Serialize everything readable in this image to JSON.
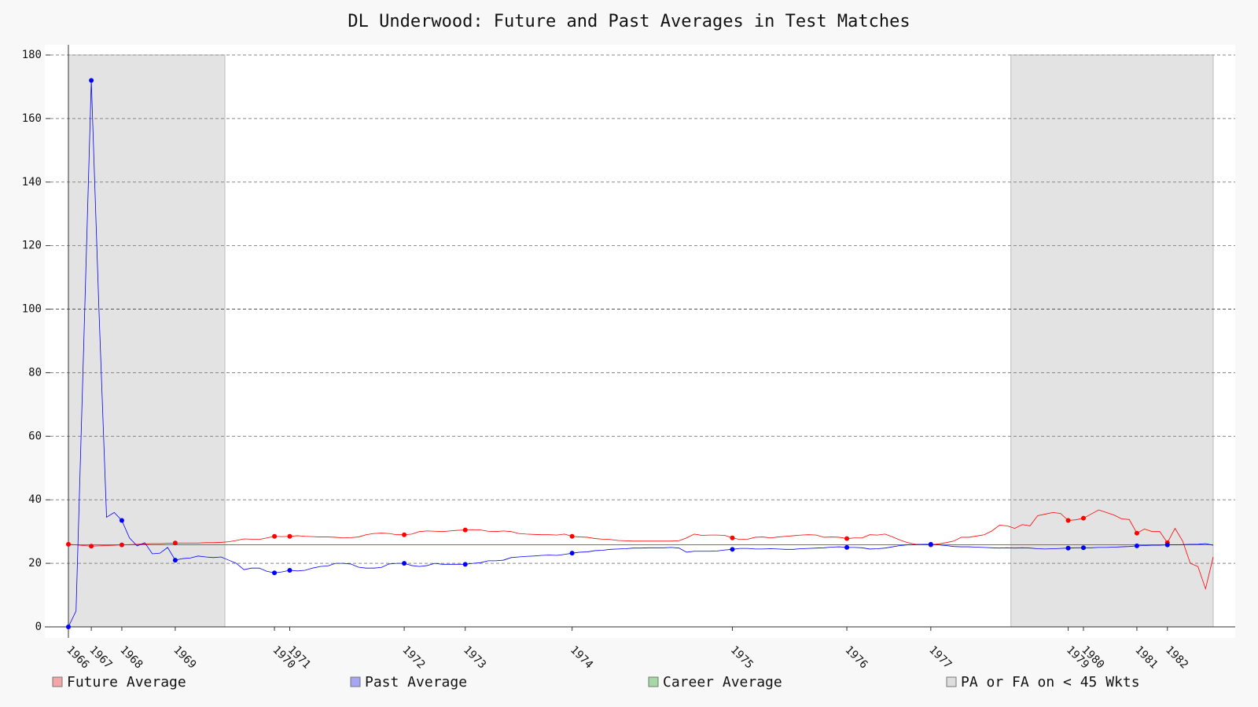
{
  "chart_data": {
    "type": "line",
    "title": "DL Underwood: Future and Past Averages in Test Matches",
    "x": [
      0,
      1,
      2,
      3,
      4,
      5,
      6,
      7,
      8,
      9,
      10,
      11,
      12,
      13,
      14,
      15,
      16,
      17,
      18,
      19,
      20,
      21,
      22,
      23,
      24,
      25,
      26,
      27,
      28,
      29,
      30,
      31,
      32,
      33,
      34,
      35,
      36,
      37,
      38,
      39,
      40,
      41,
      42,
      43,
      44,
      45,
      46,
      47,
      48,
      49,
      50,
      51,
      52,
      53,
      54,
      55,
      56,
      57,
      58,
      59,
      60,
      61,
      62,
      63,
      64,
      65,
      66,
      67,
      68,
      69,
      70,
      71,
      72,
      73,
      74,
      75,
      76,
      77,
      78,
      79,
      80,
      81,
      82,
      83,
      84,
      85,
      86,
      87,
      88,
      89,
      90,
      91,
      92,
      93,
      94,
      95,
      96,
      97,
      98,
      99,
      100,
      101,
      102,
      103,
      104,
      105,
      106,
      107,
      108,
      109,
      110,
      111,
      112,
      113,
      114,
      115,
      116,
      117,
      118,
      119,
      120,
      121,
      122,
      123,
      124,
      125,
      126,
      127,
      128,
      129,
      130,
      131,
      132,
      133,
      134,
      135,
      136,
      137,
      138,
      139,
      140,
      141,
      142,
      143,
      144,
      145,
      146,
      147,
      148,
      149,
      150
    ],
    "series": [
      {
        "name": "Future Average",
        "color": "#ff0000",
        "legend_color": "#f4a6a6",
        "values": [
          26,
          25.8,
          25.6,
          25.4,
          25.5,
          25.6,
          25.7,
          25.8,
          25.9,
          26,
          26.1,
          26.2,
          26.2,
          26.3,
          26.4,
          26.4,
          26.4,
          26.4,
          26.5,
          26.5,
          26.6,
          26.8,
          27.2,
          27.7,
          27.6,
          27.5,
          28,
          28.5,
          28.4,
          28.5,
          28.7,
          28.5,
          28.4,
          28.3,
          28.3,
          28.2,
          28,
          28.1,
          28.3,
          29,
          29.4,
          29.5,
          29.4,
          29,
          29,
          29.2,
          30,
          30.2,
          30.1,
          30,
          30.2,
          30.4,
          30.5,
          30.6,
          30.5,
          30.1,
          30,
          30.2,
          30,
          29.4,
          29.2,
          29.1,
          29,
          29,
          28.9,
          29.2,
          28.5,
          28.3,
          28.2,
          27.8,
          27.6,
          27.5,
          27.2,
          27.1,
          27,
          27,
          27,
          27,
          27,
          27,
          27.1,
          28,
          29.2,
          28.8,
          28.9,
          28.9,
          28.8,
          28,
          27.5,
          27.6,
          28.2,
          28.3,
          28,
          28.3,
          28.5,
          28.7,
          28.9,
          29,
          28.9,
          28.2,
          28.3,
          28.2,
          27.8,
          28,
          28,
          29,
          28.9,
          29.2,
          28.3,
          27.3,
          26.5,
          26,
          25.9,
          25.8,
          26.1,
          26.5,
          27,
          28.2,
          28.2,
          28.6,
          29,
          30.2,
          32,
          31.8,
          31,
          32.2,
          31.8,
          35,
          35.5,
          36,
          35.7,
          33.5,
          33.7,
          34.2,
          35.5,
          36.8,
          36,
          35.2,
          34,
          33.8,
          29.5,
          30.8,
          30,
          30,
          26.5,
          31,
          27,
          20,
          19,
          12,
          22
        ]
      },
      {
        "name": "Past Average",
        "color": "#0000ff",
        "legend_color": "#a6a6f4",
        "values": [
          0,
          5,
          88,
          172,
          100,
          34.5,
          36,
          33.5,
          28,
          25.5,
          26.5,
          23,
          23.2,
          25,
          21,
          21.5,
          21.7,
          22.3,
          22,
          21.8,
          22,
          21,
          20,
          18,
          18.5,
          18.5,
          17.5,
          17,
          17.3,
          17.8,
          17.6,
          17.8,
          18.5,
          19,
          19.2,
          20,
          20,
          19.8,
          18.8,
          18.5,
          18.5,
          18.7,
          19.8,
          20,
          20,
          19.3,
          19,
          19.3,
          20,
          19.7,
          19.7,
          19.7,
          19.7,
          20,
          20.2,
          20.8,
          20.8,
          21,
          21.8,
          22,
          22.2,
          22.3,
          22.5,
          22.6,
          22.5,
          22.8,
          23.2,
          23.5,
          23.6,
          24,
          24.1,
          24.4,
          24.5,
          24.6,
          24.8,
          24.8,
          24.9,
          24.9,
          24.9,
          25,
          24.8,
          23.5,
          23.8,
          23.8,
          23.8,
          23.9,
          24.2,
          24.4,
          24.7,
          24.7,
          24.5,
          24.5,
          24.6,
          24.5,
          24.4,
          24.4,
          24.6,
          24.7,
          24.8,
          24.9,
          25.1,
          25.2,
          25,
          25,
          24.9,
          24.5,
          24.6,
          24.8,
          25.2,
          25.6,
          25.8,
          25.9,
          26,
          26,
          25.8,
          25.6,
          25.3,
          25.2,
          25.2,
          25.1,
          25,
          24.9,
          24.8,
          24.9,
          24.8,
          24.9,
          24.8,
          24.6,
          24.5,
          24.6,
          24.7,
          24.8,
          24.9,
          24.9,
          24.9,
          25,
          25,
          25.1,
          25.2,
          25.3,
          25.5,
          25.6,
          25.7,
          25.7,
          25.8,
          25.8,
          25.9,
          26,
          26,
          26.2,
          25.7
        ]
      }
    ],
    "career_average": {
      "name": "Career Average",
      "color": "#2ca02c",
      "legend_color": "#a6d8a6",
      "value": 25.83
    },
    "shaded": {
      "name": "PA or FA on < 45 Wkts",
      "color": "#e3e3e3",
      "legend_color": "#dddddd",
      "regions": [
        [
          0,
          20.5
        ],
        [
          123.5,
          150
        ]
      ]
    },
    "xlim": [
      0,
      150
    ],
    "ylim": [
      0,
      180
    ],
    "yticks": [
      0,
      20,
      40,
      60,
      80,
      100,
      120,
      140,
      160,
      180
    ],
    "xticks": [
      {
        "value": 0,
        "label": "1966"
      },
      {
        "value": 3,
        "label": "1967"
      },
      {
        "value": 7,
        "label": "1968"
      },
      {
        "value": 14,
        "label": "1969"
      },
      {
        "value": 27,
        "label": "1970"
      },
      {
        "value": 29,
        "label": "1971"
      },
      {
        "value": 44,
        "label": "1972"
      },
      {
        "value": 52,
        "label": "1973"
      },
      {
        "value": 66,
        "label": "1974"
      },
      {
        "value": 87,
        "label": "1975"
      },
      {
        "value": 102,
        "label": "1976"
      },
      {
        "value": 113,
        "label": "1977"
      },
      {
        "value": 131,
        "label": "1979"
      },
      {
        "value": 133,
        "label": "1980"
      },
      {
        "value": 140,
        "label": "1981"
      },
      {
        "value": 144,
        "label": "1982"
      }
    ],
    "grid": true
  }
}
